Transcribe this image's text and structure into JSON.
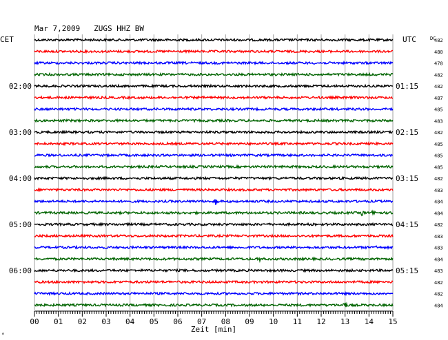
{
  "chart_data": {
    "type": "line",
    "title": "Mar 7,2009   ZUGS HHZ BW",
    "left_axis_label": "CET",
    "right_axis_label": "UTC",
    "dc_label": "DC",
    "xlabel": "Zeit [min]",
    "x_ticks": [
      "00",
      "01",
      "02",
      "03",
      "04",
      "05",
      "06",
      "07",
      "08",
      "09",
      "10",
      "11",
      "12",
      "13",
      "14",
      "15"
    ],
    "xlim": [
      0,
      15
    ],
    "trace_colors": [
      "#000000",
      "#ff0000",
      "#0000ff",
      "#006400"
    ],
    "left_time_labels": [
      {
        "trace": 4,
        "text": "02:00"
      },
      {
        "trace": 8,
        "text": "03:00"
      },
      {
        "trace": 12,
        "text": "04:00"
      },
      {
        "trace": 16,
        "text": "05:00"
      },
      {
        "trace": 20,
        "text": "06:00"
      }
    ],
    "right_time_labels": [
      {
        "trace": 4,
        "text": "01:15"
      },
      {
        "trace": 8,
        "text": "02:15"
      },
      {
        "trace": 12,
        "text": "03:15"
      },
      {
        "trace": 16,
        "text": "04:15"
      },
      {
        "trace": 20,
        "text": "05:15"
      }
    ],
    "dc_values": [
      "482",
      "480",
      "478",
      "482",
      "482",
      "487",
      "485",
      "483",
      "482",
      "485",
      "485",
      "485",
      "482",
      "483",
      "484",
      "484",
      "482",
      "483",
      "483",
      "484",
      "483",
      "482",
      "482",
      "484"
    ],
    "events": [
      {
        "trace": 14,
        "minute": 7.6,
        "amplitude": 3.5
      },
      {
        "trace": 15,
        "minute": 13.7,
        "amplitude": 2.2
      },
      {
        "trace": 15,
        "minute": 14.2,
        "amplitude": 1.6
      },
      {
        "trace": 19,
        "minute": 9.4,
        "amplitude": 1.6
      },
      {
        "trace": 23,
        "minute": 13.0,
        "amplitude": 1.8
      },
      {
        "trace": 16,
        "minute": 11.9,
        "amplitude": 1.0
      },
      {
        "trace": 18,
        "minute": 14.3,
        "amplitude": 0.8
      }
    ],
    "grid": true
  },
  "footer_mark": "⁰"
}
